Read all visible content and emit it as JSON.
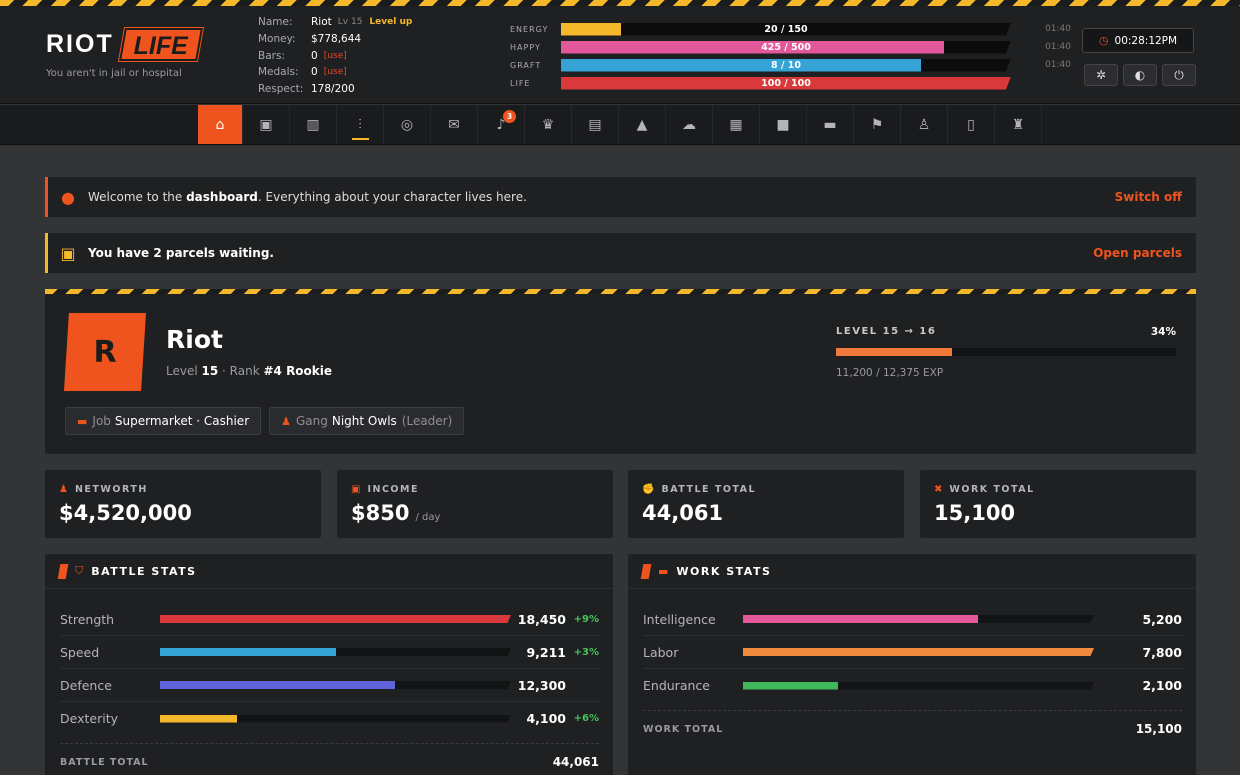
{
  "header": {
    "logo_left": "RIOT",
    "logo_right": "LIFE",
    "tagline": "You aren't in jail or hospital",
    "player": {
      "name_label": "Name:",
      "name": "Riot",
      "level": "Lv 15",
      "level_up": "Level up",
      "money_label": "Money:",
      "money": "$778,644",
      "bars_label": "Bars:",
      "bars": "0",
      "bars_use": "[use]",
      "medals_label": "Medals:",
      "medals": "0",
      "medals_use": "[use]",
      "respect_label": "Respect:",
      "respect": "178/200"
    },
    "bars": [
      {
        "label": "ENERGY",
        "text": "20 / 150",
        "fraction": 0.133,
        "color": "#f5b82a",
        "time": "01:40"
      },
      {
        "label": "HAPPY",
        "text": "425 / 500",
        "fraction": 0.85,
        "color": "#e2589a",
        "time": "01:40"
      },
      {
        "label": "GRAFT",
        "text": "8 / 10",
        "fraction": 0.8,
        "color": "#35a3d6",
        "time": "01:40"
      },
      {
        "label": "LIFE",
        "text": "100 / 100",
        "fraction": 1.0,
        "color": "#d9393a",
        "time": ""
      }
    ],
    "clock": "00:28:12PM",
    "icon_buttons": [
      "gear-icon",
      "contrast-icon",
      "power-icon"
    ]
  },
  "nav": {
    "items": [
      {
        "icon": "home-icon",
        "glyph": "⌂"
      },
      {
        "icon": "box-icon",
        "glyph": "▣"
      },
      {
        "icon": "city-icon",
        "glyph": "▥"
      },
      {
        "icon": "dumbbell-icon",
        "glyph": "⫶"
      },
      {
        "icon": "mask-icon",
        "glyph": "◎"
      },
      {
        "icon": "mail-icon",
        "glyph": "✉"
      },
      {
        "icon": "bell-icon",
        "glyph": "♪",
        "badge": "3"
      },
      {
        "icon": "trophy-icon",
        "glyph": "♛"
      },
      {
        "icon": "building-icon",
        "glyph": "▤"
      },
      {
        "icon": "graduation-icon",
        "glyph": "▲"
      },
      {
        "icon": "chat-icon",
        "glyph": "☁"
      },
      {
        "icon": "skyline-icon",
        "glyph": "▦"
      },
      {
        "icon": "lock-icon",
        "glyph": "■"
      },
      {
        "icon": "briefcase-icon",
        "glyph": "▬"
      },
      {
        "icon": "flag-icon",
        "glyph": "⚑"
      },
      {
        "icon": "user-plus-icon",
        "glyph": "♙"
      },
      {
        "icon": "clipboard-icon",
        "glyph": "▯"
      },
      {
        "icon": "user-shield-icon",
        "glyph": "♜"
      }
    ]
  },
  "alerts": {
    "welcome": {
      "prefix": "Welcome to the ",
      "bold": "dashboard",
      "suffix": ". Everything about your character lives here.",
      "action": "Switch off"
    },
    "parcels": {
      "text": "You have 2 parcels waiting.",
      "action": "Open parcels"
    }
  },
  "profile": {
    "initial": "R",
    "name": "Riot",
    "level_label": "Level",
    "level": "15",
    "sep": " · ",
    "rank_label": "Rank",
    "rank": "#4 Rookie",
    "job_label": "Job",
    "job": "Supermarket · Cashier",
    "gang_label": "Gang",
    "gang": "Night Owls",
    "gang_role": "(Leader)",
    "level_progress_label": "LEVEL 15 → 16",
    "level_progress_pct": "34%",
    "level_progress_fraction": 0.34,
    "exp": "11,200 / 12,375 EXP"
  },
  "cards": [
    {
      "label": "NETWORTH",
      "icon": "money-bag-icon",
      "glyph": "♟",
      "value": "$4,520,000",
      "unit": ""
    },
    {
      "label": "INCOME",
      "icon": "cash-icon",
      "glyph": "▣",
      "value": "$850",
      "unit": "/ day"
    },
    {
      "label": "BATTLE TOTAL",
      "icon": "fist-icon",
      "glyph": "✊",
      "value": "44,061",
      "unit": ""
    },
    {
      "label": "WORK TOTAL",
      "icon": "tools-icon",
      "glyph": "✖",
      "value": "15,100",
      "unit": ""
    }
  ],
  "battle_stats": {
    "title": "BATTLE STATS",
    "rows": [
      {
        "name": "Strength",
        "value": "18,450",
        "delta": "+9%",
        "fraction": 1.0,
        "color": "#d9393a"
      },
      {
        "name": "Speed",
        "value": "9,211",
        "delta": "+3%",
        "fraction": 0.5,
        "color": "#35a3d6"
      },
      {
        "name": "Defence",
        "value": "12,300",
        "delta": "",
        "fraction": 0.67,
        "color": "#5f63d9"
      },
      {
        "name": "Dexterity",
        "value": "4,100",
        "delta": "+6%",
        "fraction": 0.22,
        "color": "#f5b82a"
      }
    ],
    "total_label": "BATTLE TOTAL",
    "total": "44,061"
  },
  "work_stats": {
    "title": "WORK STATS",
    "rows": [
      {
        "name": "Intelligence",
        "value": "5,200",
        "fraction": 0.67,
        "color": "#e2589a"
      },
      {
        "name": "Labor",
        "value": "7,800",
        "fraction": 1.0,
        "color": "#f08a3e"
      },
      {
        "name": "Endurance",
        "value": "2,100",
        "fraction": 0.27,
        "color": "#3fb95a"
      }
    ],
    "total_label": "WORK TOTAL",
    "total": "15,100"
  }
}
